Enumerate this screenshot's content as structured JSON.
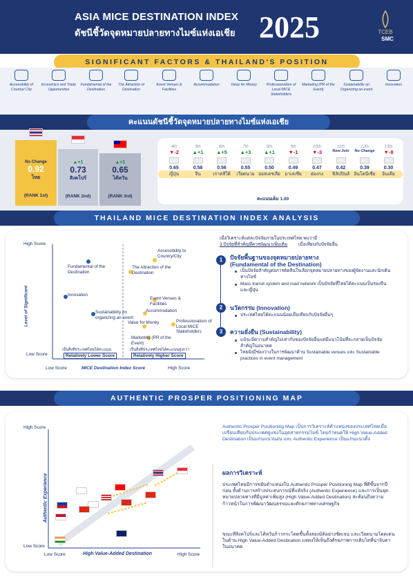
{
  "header": {
    "title_en": "ASIA MICE DESTINATION INDEX",
    "title_th": "ดัชนีชี้วัดจุดหมายปลายทางไมซ์แห่งเอเชีย",
    "year": "2025",
    "logo1": "TCEB",
    "logo2": "SMC"
  },
  "ribbon1": "SIGNIFICANT FACTORS & THAILAND'S POSITION",
  "factors": [
    "Accessibility of Country/ City",
    "Economics and Trade Opportunities",
    "Fundamental of the Destination",
    "The Attraction of Destination",
    "Event Venues & Facilities",
    "Accommodation",
    "Value for Money",
    "Professionalism of Local MICE Stakeholders",
    "Marketing (PR of the Event)",
    "Sustainability on Organizing an event",
    "Innovation"
  ],
  "score_title": "คะแนนดัชนีชี้วัดจุดหมายปลายทางไมซ์แห่งเอเชีย",
  "podium": [
    {
      "change": "No Change",
      "score": "0.92",
      "name": "ไทย",
      "rank": "(RANK 1st)"
    },
    {
      "change": "▲+1",
      "score": "0.73",
      "name": "สิงคโปร์",
      "rank": "(RANK 2nd)"
    },
    {
      "change": "▲+1",
      "score": "0.65",
      "name": "ไต้หวัน",
      "rank": "(RANK 3rd)"
    }
  ],
  "ranks": [
    {
      "r": "4th",
      "c": "▼-2",
      "s": "0.65",
      "n": "ญี่ปุ่น"
    },
    {
      "r": "5th",
      "c": "▲+1",
      "s": "0.58",
      "n": "จีน"
    },
    {
      "r": "6th",
      "c": "▲+5",
      "s": "0.56",
      "n": "เกาหลีใต้"
    },
    {
      "r": "7th",
      "c": "▲+3",
      "s": "0.55",
      "n": "เวียดนาม"
    },
    {
      "r": "8th",
      "c": "▲+1",
      "s": "0.50",
      "n": "ออสเตรเลีย"
    },
    {
      "r": "9th",
      "c": "▼-1",
      "s": "0.49",
      "n": "มาเลเซีย"
    },
    {
      "r": "10th",
      "c": "▼-3",
      "s": "0.47",
      "n": "ฮ่องกง"
    },
    {
      "r": "11th",
      "c": "New Join",
      "s": "0.42",
      "n": "ฟิลิปปินส์"
    },
    {
      "r": "12th",
      "c": "No Change",
      "s": "0.39",
      "n": "อินโดนีเซีย"
    },
    {
      "r": "13th",
      "c": "▼-8",
      "s": "0.30",
      "n": "อินเดีย"
    }
  ],
  "full_score": "คะแนนเต็ม 1.00",
  "sec2": "THAILAND MICE DESTINATION INDEX ANALYSIS",
  "chart1": {
    "high": "High Score",
    "low": "Low Score",
    "low2": "Low Score",
    "high2": "High Score",
    "ylabel": "Level of Significant",
    "xlabel": "MICE Destination Index Score",
    "lowcap": "เป็นสิ่งที่ประเทศไทยได้คะแนน",
    "lowtag": "Relatively Lower Score",
    "highcap": "เป็นสิ่งที่ประเทศไทยได้คะแนนสูงกว่า",
    "hightag": "Relatively Higher Score",
    "points": [
      "Fundamental of the Destination",
      "Innovation",
      "Sustainability on organizing an event",
      "Accessibility to Country/City",
      "The Attraction of the Destination",
      "Event Venues & Facilities",
      "Accommodation",
      "Value for Money",
      "Professionalism of Local MICE Stakeholders",
      "Marketing (PR of the Event)"
    ]
  },
  "analysis": {
    "intro": "เมื่อวิเคราะห์แต่ละปัจจัยภายในประเทศไทย พบว่ามี",
    "intro2": "3 ปัจจัยที่สำคัญที่ควรพัฒนาเพิ่มเติม",
    "intro3": "เมื่อเทียบกับปัจจัยอื่น",
    "h1": "ปัจจัยพื้นฐานของจุดหมายปลายทาง",
    "h1e": "(Fundamental of the Destination)",
    "b1a": "เป็นปัจจัยสำคัญต่อการตัดสินใจเลือกจุดหมายปลายทางของผู้จัดงานและนักเดินทางไมซ์",
    "b1b": "Mass transit system and road network เป็นปัจจัยที่ไทยได้คะแนนเป็นรองจีนและญี่ปุ่น",
    "h2": "นวัตกรรม (Innovation)",
    "b2": "ประเทศไทยได้คะแนนน้อยเมื่อเทียบกับปัจจัยอื่นๆ",
    "h3": "ความยั่งยืน (Sustainability)",
    "b3a": "แม้จะมีความสำคัญไม่เท่ากับของปัจจัยอื่นแต่มีแนวโน้มที่จะกลายเป็นปัจจัยสำคัญในอนาคต",
    "b3b": "ไทยยังมีช่องว่างในการพัฒนาด้าน Sustainable venues และ Sustainable practices in event management"
  },
  "sec3": "AUTHENTIC PROSPER POSITIONING MAP",
  "chart2": {
    "high": "High Score",
    "low": "Low Score",
    "low2": "Low Score",
    "high2": "High Score",
    "ylabel": "Authentic Experience",
    "xlabel": "High Value-Added Destination"
  },
  "map_text": {
    "p1": "Authentic Prosper Positioning Map เป็นการวิเคราะห์ตำแหน่งของประเทศไทยเมื่อเปรียบเทียบกับประเทศคู่แข่งในอุตสาหกรรมไมซ์ โดยกำหนดให้ High Value-Added Destination เป็นแกนแนวนอน และ Authentic Experience เป็นแกนแนวตั้ง",
    "h": "ผลการวิเคราะห์",
    "p2": "ประเทศไทยมีการขยับตำแหน่งใน Authentic Prosper Positioning Map ที่ดีขึ้นจากปีก่อน ทั้งด้านการสร้างประสบการณ์ที่แท้จริง (Authentic Experience) และการเป็นจุดหมายปลายทางที่มีมูลค่าเพิ่มสูง (High Value-Added Destination) สะท้อนถึงความก้าวหน้าในการพัฒนาวัฒนธรรมและศักยภาพทางเศรษฐกิจ",
    "p3": "ขณะที่สิงคโปร์และไต้หวันก้าวกระโดดขึ้นทั้งสองมิติอย่างชัดเจน และเวียดนามโดดเด่นในด้าน High Value-Added Destination แสดงให้เห็นถึงศักยภาพการเติบโตที่น่าจับตาในอนาคต"
  },
  "colors": {
    "navy": "#1f3670",
    "gold": "#f5c342",
    "blue": "#2a5aa8"
  }
}
